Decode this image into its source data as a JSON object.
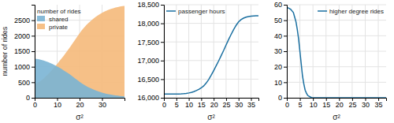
{
  "chart_data": [
    {
      "type": "area",
      "stacked": false,
      "xlabel": "σ²",
      "ylabel": "number of rides",
      "legend_title": "number of rides",
      "x": [
        0,
        1,
        2,
        3,
        4,
        5,
        6,
        7,
        8,
        9,
        10,
        11,
        12,
        13,
        14,
        15,
        16,
        17,
        18,
        19,
        20,
        21,
        22,
        23,
        24,
        25,
        26,
        27,
        28,
        29,
        30,
        31,
        32,
        33,
        34,
        35,
        36,
        37,
        38,
        39,
        40
      ],
      "series": [
        {
          "name": "shared",
          "color": "#7ab4d4",
          "values": [
            1260,
            1250,
            1240,
            1220,
            1200,
            1175,
            1150,
            1120,
            1085,
            1050,
            1010,
            970,
            925,
            880,
            835,
            785,
            735,
            680,
            625,
            570,
            515,
            465,
            420,
            378,
            340,
            305,
            272,
            242,
            215,
            190,
            168,
            148,
            130,
            115,
            102,
            90,
            79,
            69,
            60,
            52,
            45
          ]
        },
        {
          "name": "private",
          "color": "#f5b97a",
          "values": [
            440,
            470,
            510,
            560,
            620,
            690,
            760,
            840,
            920,
            1005,
            1090,
            1180,
            1270,
            1360,
            1460,
            1560,
            1660,
            1765,
            1870,
            1975,
            2080,
            2180,
            2265,
            2345,
            2415,
            2480,
            2545,
            2600,
            2650,
            2695,
            2738,
            2775,
            2808,
            2840,
            2865,
            2888,
            2908,
            2925,
            2940,
            2953,
            2965
          ]
        }
      ],
      "xlim": [
        0,
        40
      ],
      "ylim": [
        0,
        3000
      ],
      "xticks": [
        0,
        10,
        20,
        30
      ],
      "yticks": [
        0,
        500,
        1000,
        1500,
        2000,
        2500
      ],
      "grid": true,
      "legend": "upper left"
    },
    {
      "type": "line",
      "xlabel": "σ²",
      "x": [
        0,
        1,
        2,
        3,
        4,
        5,
        6,
        7,
        8,
        9,
        10,
        11,
        12,
        13,
        14,
        15,
        16,
        17,
        18,
        19,
        20,
        21,
        22,
        23,
        24,
        25,
        26,
        27,
        28,
        29,
        30,
        31,
        32,
        33,
        34,
        35,
        36,
        37,
        38
      ],
      "series": [
        {
          "name": "passenger hours",
          "color": "#1a6fa0",
          "values": [
            16100,
            16100,
            16100,
            16100,
            16100,
            16100,
            16102,
            16105,
            16110,
            16118,
            16130,
            16145,
            16165,
            16192,
            16225,
            16265,
            16320,
            16395,
            16490,
            16605,
            16730,
            16860,
            16990,
            17130,
            17270,
            17420,
            17565,
            17700,
            17830,
            17945,
            18040,
            18100,
            18140,
            18165,
            18180,
            18192,
            18198,
            18202,
            18205
          ]
        }
      ],
      "xlim": [
        0,
        38
      ],
      "ylim": [
        16000,
        18500
      ],
      "xticks": [
        0,
        5,
        10,
        15,
        20,
        25,
        30,
        35
      ],
      "yticks": [
        {
          "value": 16000,
          "label": "16,000"
        },
        {
          "value": 16500,
          "label": "16,500"
        },
        {
          "value": 17000,
          "label": "17,000"
        },
        {
          "value": 17500,
          "label": "17,500"
        },
        {
          "value": 18000,
          "label": "18,000"
        },
        {
          "value": 18500,
          "label": "18,500"
        }
      ],
      "grid": true,
      "legend": "upper left"
    },
    {
      "type": "line",
      "xlabel": "σ²",
      "x": [
        0,
        0.5,
        1,
        1.5,
        2,
        2.5,
        3,
        3.5,
        4,
        4.5,
        5,
        5.5,
        6,
        6.5,
        7,
        7.5,
        8,
        8.5,
        9,
        9.5,
        10,
        11,
        12,
        13,
        14,
        15,
        16,
        17,
        18,
        19,
        20,
        25,
        30,
        35,
        38
      ],
      "series": [
        {
          "name": "higher degree rides",
          "color": "#1a6fa0",
          "values": [
            58,
            58,
            57.5,
            57,
            56,
            55,
            52,
            49,
            44,
            38,
            30,
            22,
            14,
            9,
            5,
            3,
            1.5,
            1,
            0.5,
            0.2,
            0,
            0,
            0,
            0,
            0,
            0,
            0,
            0,
            0,
            0,
            0,
            0,
            0,
            0,
            0
          ]
        }
      ],
      "xlim": [
        0,
        38
      ],
      "ylim": [
        0,
        60
      ],
      "xticks": [
        0,
        5,
        10,
        15,
        20,
        25,
        30,
        35
      ],
      "yticks": [
        0,
        10,
        20,
        30,
        40,
        50,
        60
      ],
      "grid": true,
      "legend": "upper right"
    }
  ]
}
